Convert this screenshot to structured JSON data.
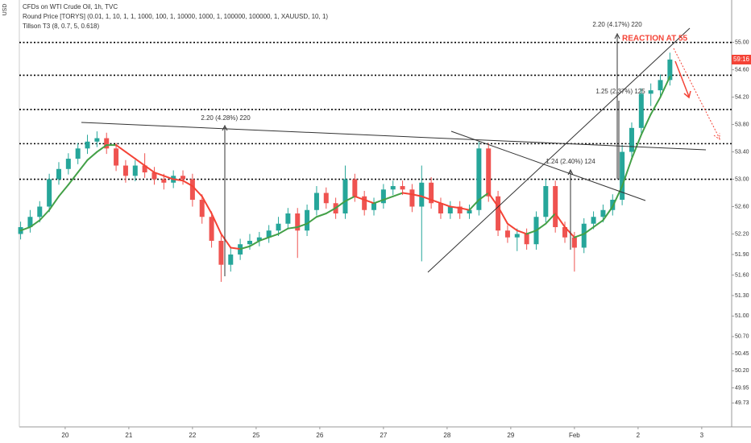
{
  "chart_data": {
    "type": "candlestick",
    "title": "CFDs on WTI Crude Oil, 1h, TVC",
    "indicators": [
      "Round Price [TORYS] (0.01, 1, 10, 1, 1, 1000, 100, 1, 10000, 1000, 1, 100000, 100000, 1, XAUUSD, 10, 1)",
      "Tillson T3 (8, 0.7, 5, 0.618)"
    ],
    "currency": "USD",
    "price_label": "59:16",
    "annotations": [
      "2.20 (4.28%) 220",
      "1.24 (2.40%) 124",
      "1.25 (2.37%) 125",
      "2.20 (4.17%) 220",
      "REACTION AT 55"
    ],
    "up_color": "#26a69a",
    "down_color": "#ef5350",
    "t3_up_color": "#43a047",
    "t3_down_color": "#f44336",
    "x": [
      -0.7,
      -0.55,
      -0.4,
      -0.25,
      -0.1,
      0.05,
      0.2,
      0.35,
      0.5,
      0.65,
      0.8,
      0.95,
      1.1,
      1.25,
      1.4,
      1.55,
      1.7,
      1.85,
      2.0,
      2.15,
      2.3,
      2.45,
      2.6,
      2.75,
      2.9,
      3.05,
      3.2,
      3.35,
      3.5,
      3.65,
      3.8,
      3.95,
      4.1,
      4.25,
      4.4,
      4.55,
      4.7,
      4.85,
      5.0,
      5.15,
      5.3,
      5.45,
      5.6,
      5.75,
      5.9,
      6.05,
      6.2,
      6.35,
      6.5,
      6.65,
      6.8,
      6.95,
      7.1,
      7.25,
      7.4,
      7.55,
      7.7,
      7.85,
      8.0,
      8.15,
      8.3,
      8.45,
      8.6,
      8.75,
      8.9,
      9.05,
      9.2,
      9.35,
      9.5
    ],
    "open": [
      52.2,
      52.3,
      52.45,
      52.6,
      53.0,
      53.15,
      53.3,
      53.45,
      53.55,
      53.6,
      53.45,
      53.2,
      53.05,
      53.2,
      53.1,
      53.0,
      52.95,
      53.05,
      53.0,
      52.7,
      52.45,
      52.1,
      51.75,
      51.9,
      52.05,
      52.1,
      52.15,
      52.25,
      52.35,
      52.5,
      52.25,
      52.55,
      52.8,
      52.65,
      52.5,
      53.0,
      52.75,
      52.55,
      52.65,
      52.85,
      52.9,
      52.85,
      52.6,
      52.95,
      52.65,
      52.5,
      52.6,
      52.5,
      52.55,
      53.45,
      52.75,
      52.25,
      52.15,
      52.2,
      52.05,
      52.45,
      52.9,
      52.3,
      52.15,
      52.0,
      52.35,
      52.45,
      52.55,
      52.7,
      53.4,
      53.75,
      54.25,
      54.3,
      54.45
    ],
    "high": [
      52.38,
      52.55,
      52.68,
      53.08,
      53.25,
      53.38,
      53.53,
      53.65,
      53.7,
      53.68,
      53.53,
      53.28,
      53.28,
      53.38,
      53.18,
      53.08,
      53.13,
      53.13,
      53.08,
      52.78,
      52.53,
      52.18,
      52.0,
      52.13,
      52.2,
      52.23,
      52.33,
      52.45,
      52.58,
      52.58,
      52.63,
      52.9,
      52.88,
      52.73,
      53.2,
      53.08,
      52.83,
      52.73,
      52.93,
      52.98,
      52.98,
      52.93,
      53.2,
      53.03,
      52.73,
      52.68,
      52.68,
      52.63,
      53.55,
      53.53,
      52.83,
      52.33,
      52.28,
      52.28,
      52.53,
      53.0,
      52.98,
      52.38,
      52.23,
      52.43,
      52.53,
      52.63,
      52.78,
      53.5,
      53.83,
      54.33,
      54.4,
      54.53,
      54.85
    ],
    "low": [
      52.12,
      52.22,
      52.37,
      52.52,
      52.92,
      53.07,
      53.22,
      53.37,
      53.47,
      53.37,
      53.12,
      52.95,
      52.97,
      53.02,
      52.92,
      52.85,
      52.87,
      52.92,
      52.6,
      52.35,
      52.0,
      51.5,
      51.65,
      51.82,
      51.97,
      52.02,
      52.07,
      52.17,
      52.27,
      51.85,
      52.17,
      52.47,
      52.57,
      52.42,
      52.42,
      52.67,
      52.47,
      52.47,
      52.57,
      52.77,
      52.77,
      52.52,
      51.8,
      52.57,
      52.42,
      52.42,
      52.42,
      52.42,
      52.47,
      52.67,
      52.17,
      52.07,
      51.95,
      51.97,
      51.97,
      52.37,
      52.22,
      52.07,
      51.65,
      51.92,
      52.27,
      52.37,
      52.47,
      52.62,
      53.32,
      53.67,
      54.07,
      54.22,
      54.37
    ],
    "close": [
      52.3,
      52.45,
      52.6,
      53.0,
      53.15,
      53.3,
      53.45,
      53.55,
      53.6,
      53.45,
      53.2,
      53.05,
      53.2,
      53.1,
      53.0,
      52.95,
      53.05,
      53.0,
      52.7,
      52.45,
      52.1,
      51.75,
      51.9,
      52.05,
      52.1,
      52.15,
      52.25,
      52.35,
      52.5,
      52.25,
      52.55,
      52.8,
      52.65,
      52.5,
      53.0,
      52.75,
      52.55,
      52.65,
      52.85,
      52.9,
      52.85,
      52.6,
      52.95,
      52.65,
      52.5,
      52.6,
      52.5,
      52.55,
      53.45,
      52.75,
      52.25,
      52.15,
      52.2,
      52.05,
      52.45,
      52.9,
      52.3,
      52.15,
      52.0,
      52.35,
      52.45,
      52.55,
      52.7,
      53.4,
      53.75,
      54.25,
      54.3,
      54.45,
      54.75
    ],
    "t3": [
      52.25,
      52.3,
      52.4,
      52.55,
      52.75,
      52.92,
      53.1,
      53.28,
      53.4,
      53.5,
      53.5,
      53.4,
      53.3,
      53.2,
      53.1,
      53.05,
      53.0,
      52.98,
      52.9,
      52.75,
      52.5,
      52.2,
      52.0,
      51.98,
      52.02,
      52.1,
      52.15,
      52.2,
      52.28,
      52.3,
      52.35,
      52.45,
      52.5,
      52.58,
      52.68,
      52.75,
      52.7,
      52.65,
      52.7,
      52.75,
      52.8,
      52.78,
      52.75,
      52.7,
      52.65,
      52.6,
      52.58,
      52.55,
      52.7,
      52.8,
      52.6,
      52.35,
      52.25,
      52.2,
      52.25,
      52.35,
      52.5,
      52.3,
      52.15,
      52.2,
      52.3,
      52.4,
      52.6,
      52.9,
      53.3,
      53.65,
      53.95,
      54.2,
      54.5
    ],
    "levels": [
      55.0,
      54.52,
      54.02,
      53.52,
      53.0
    ],
    "xlim": [
      -0.72,
      10.47
    ],
    "xticks": [
      {
        "value": 0,
        "label": "20"
      },
      {
        "value": 1,
        "label": "21"
      },
      {
        "value": 2,
        "label": "22"
      },
      {
        "value": 3,
        "label": "25"
      },
      {
        "value": 4,
        "label": "26"
      },
      {
        "value": 5,
        "label": "27"
      },
      {
        "value": 6,
        "label": "28"
      },
      {
        "value": 7,
        "label": "29"
      },
      {
        "value": 8,
        "label": "Feb"
      },
      {
        "value": 9,
        "label": "2"
      },
      {
        "value": 10,
        "label": "3"
      }
    ],
    "ylim": [
      49.38,
      55.62
    ],
    "yticks": [
      {
        "value": 55,
        "label": "55.00"
      },
      {
        "value": 54.6,
        "label": "54.60"
      },
      {
        "value": 54.2,
        "label": "54.20"
      },
      {
        "value": 53.8,
        "label": "53.80"
      },
      {
        "value": 53.4,
        "label": "53.40"
      },
      {
        "value": 53,
        "label": "53.00"
      },
      {
        "value": 52.6,
        "label": "52.60"
      },
      {
        "value": 52.2,
        "label": "52.20"
      },
      {
        "value": 51.9,
        "label": "51.90"
      },
      {
        "value": 51.6,
        "label": "51.60"
      },
      {
        "value": 51.3,
        "label": "51.30"
      },
      {
        "value": 51,
        "label": "51.00"
      },
      {
        "value": 50.7,
        "label": "50.70"
      },
      {
        "value": 50.45,
        "label": "50.45"
      },
      {
        "value": 50.2,
        "label": "50.20"
      },
      {
        "value": 49.95,
        "label": "49.95"
      },
      {
        "value": 49.73,
        "label": "49.73"
      }
    ]
  }
}
